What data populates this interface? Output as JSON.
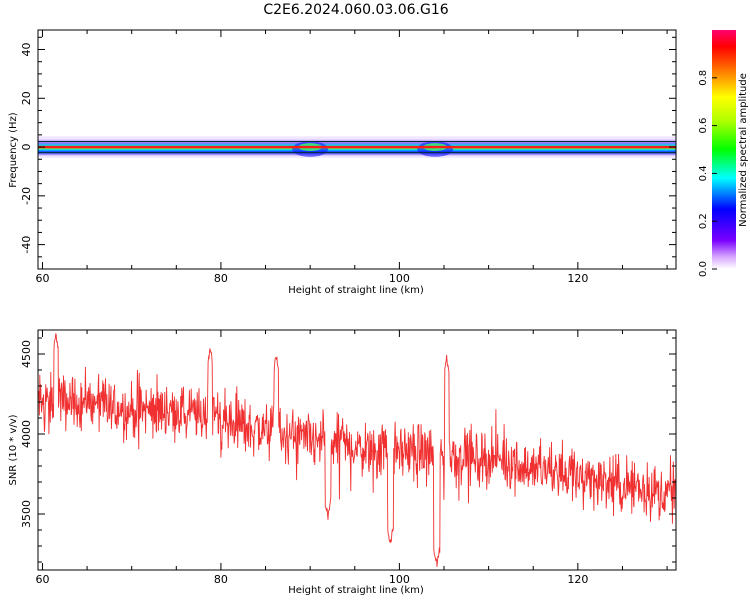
{
  "title": "C2E6.2024.060.03.06.G16",
  "colorbar": {
    "label": "Normalized spectral amplitude",
    "ticks": [
      "0.0",
      "0.2",
      "0.4",
      "0.6",
      "0.8"
    ],
    "range": [
      0,
      1
    ]
  },
  "chart_data": [
    {
      "type": "heatmap",
      "xlabel": "Height of straight line (km)",
      "ylabel": "Frequency (Hz)",
      "xlim": [
        59.5,
        131
      ],
      "ylim": [
        -50,
        48
      ],
      "x_ticks": [
        "60",
        "80",
        "100",
        "120"
      ],
      "y_ticks": [
        "40",
        "20",
        "0",
        "-20",
        "-40"
      ],
      "band_center_hz": 0,
      "band_halfwidth_hz": 2,
      "disturbance_km": [
        90,
        104
      ]
    },
    {
      "type": "line",
      "xlabel": "Height of straight line (km)",
      "ylabel": "SNR (10 * v/v)",
      "xlim": [
        59.5,
        131
      ],
      "ylim": [
        3150,
        4650
      ],
      "x_ticks": [
        "60",
        "80",
        "100",
        "120"
      ],
      "y_ticks": [
        "4500",
        "4000",
        "3500"
      ],
      "color": "#f03030",
      "trend": {
        "x": [
          59.5,
          65,
          70,
          75,
          80,
          85,
          90,
          95,
          100,
          105,
          110,
          115,
          120,
          125,
          131
        ],
        "y": [
          4200,
          4190,
          4150,
          4150,
          4080,
          4020,
          3950,
          3920,
          3900,
          3880,
          3850,
          3800,
          3740,
          3680,
          3620
        ]
      },
      "dips": [
        {
          "x": 92,
          "y": 3450
        },
        {
          "x": 99,
          "y": 3290
        },
        {
          "x": 104.2,
          "y": 3150
        }
      ],
      "peaks": [
        {
          "x": 61.5,
          "y": 4650
        },
        {
          "x": 78.8,
          "y": 4560
        },
        {
          "x": 86.2,
          "y": 4520
        },
        {
          "x": 105.3,
          "y": 4500
        }
      ]
    }
  ]
}
